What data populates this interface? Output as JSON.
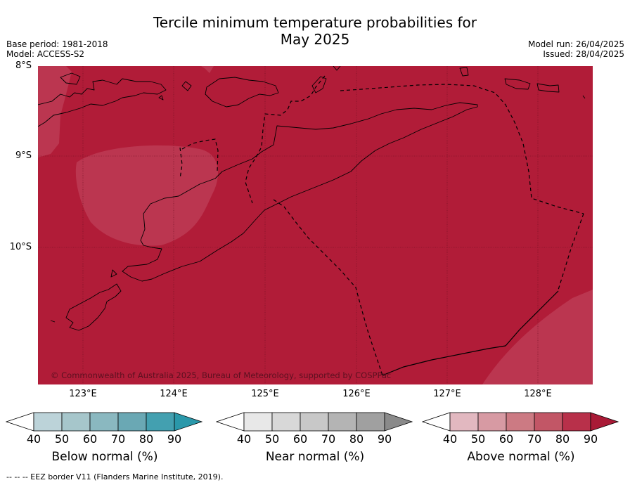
{
  "title_line1": "Tercile minimum temperature probabilities for",
  "title_line2": "May 2025",
  "meta": {
    "base_period": "Base period: 1981-2018",
    "model": "Model: ACCESS-S2",
    "model_run": "Model run: 26/04/2025",
    "issued": "Issued: 28/04/2025"
  },
  "map": {
    "lat_labels": [
      "8°S",
      "9°S",
      "10°S"
    ],
    "lon_labels": [
      "123°E",
      "124°E",
      "125°E",
      "126°E",
      "127°E",
      "128°E"
    ],
    "copyright": "© Commonwealth of Australia 2025, Bureau of Meteorology, supported by COSPPac",
    "fill_dominant": "#b11c38",
    "fill_lighter": "#bb3650"
  },
  "legends": [
    {
      "label": "Below normal (%)",
      "ticks": [
        "40",
        "50",
        "60",
        "70",
        "80",
        "90"
      ],
      "colors": [
        "#ffffff",
        "#bcd3d9",
        "#a6c6cb",
        "#8ab8c0",
        "#6aa8b4",
        "#43a0b0",
        "#2a98aa"
      ]
    },
    {
      "label": "Near normal (%)",
      "ticks": [
        "40",
        "50",
        "60",
        "70",
        "80",
        "90"
      ],
      "colors": [
        "#ffffff",
        "#e8e8e8",
        "#d8d8d8",
        "#c8c8c8",
        "#b4b4b4",
        "#a0a0a0",
        "#8a8a8a"
      ]
    },
    {
      "label": "Above normal (%)",
      "ticks": [
        "40",
        "50",
        "60",
        "70",
        "80",
        "90"
      ],
      "colors": [
        "#ffffff",
        "#e2b8c0",
        "#d79aa3",
        "#cc7a83",
        "#c25666",
        "#b8304a",
        "#a91a36"
      ]
    }
  ],
  "footer": "--  --  -- EEZ border V11 (Flanders Marine Institute, 2019)."
}
